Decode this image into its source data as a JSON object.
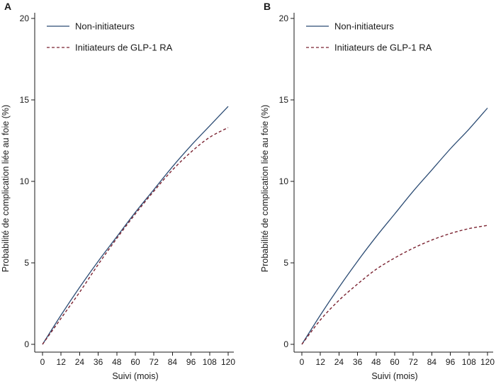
{
  "chart_data": [
    {
      "panel": "A",
      "type": "line",
      "xlabel": "Suivi (mois)",
      "ylabel": "Probabilité de complication liée au foie (%)",
      "xlim": [
        0,
        120
      ],
      "ylim": [
        0,
        20
      ],
      "xticks": [
        0,
        12,
        24,
        36,
        48,
        60,
        72,
        84,
        96,
        108,
        120
      ],
      "yticks": [
        0,
        5,
        10,
        15,
        20
      ],
      "grid": false,
      "legend_position": "top-left",
      "series": [
        {
          "name": "Non-initiateurs",
          "style": "solid",
          "color": "#2c4c74",
          "x": [
            0,
            12,
            24,
            36,
            48,
            60,
            72,
            84,
            96,
            108,
            120
          ],
          "y": [
            0,
            1.8,
            3.5,
            5.1,
            6.6,
            8.1,
            9.5,
            10.9,
            12.2,
            13.4,
            14.6
          ]
        },
        {
          "name": "Initiateurs de GLP-1 RA",
          "style": "dashed",
          "color": "#7a2230",
          "x": [
            0,
            12,
            24,
            36,
            48,
            60,
            72,
            84,
            96,
            108,
            120
          ],
          "y": [
            0,
            1.6,
            3.2,
            4.9,
            6.5,
            8.0,
            9.4,
            10.7,
            11.8,
            12.7,
            13.3
          ]
        }
      ]
    },
    {
      "panel": "B",
      "type": "line",
      "xlabel": "Suivi (mois)",
      "ylabel": "Probabilité de complication liée au foie (%)",
      "xlim": [
        0,
        120
      ],
      "ylim": [
        0,
        20
      ],
      "xticks": [
        0,
        12,
        24,
        36,
        48,
        60,
        72,
        84,
        96,
        108,
        120
      ],
      "yticks": [
        0,
        5,
        10,
        15,
        20
      ],
      "grid": false,
      "legend_position": "top-left",
      "series": [
        {
          "name": "Non-initiateurs",
          "style": "solid",
          "color": "#2c4c74",
          "x": [
            0,
            12,
            24,
            36,
            48,
            60,
            72,
            84,
            96,
            108,
            120
          ],
          "y": [
            0,
            1.8,
            3.5,
            5.1,
            6.6,
            8.0,
            9.4,
            10.7,
            12.0,
            13.2,
            14.5
          ]
        },
        {
          "name": "Initiateurs de GLP-1 RA",
          "style": "dashed",
          "color": "#7a2230",
          "x": [
            0,
            12,
            24,
            36,
            48,
            60,
            72,
            84,
            96,
            108,
            120
          ],
          "y": [
            0,
            1.5,
            2.7,
            3.7,
            4.6,
            5.3,
            5.9,
            6.4,
            6.8,
            7.1,
            7.3
          ]
        }
      ]
    }
  ]
}
